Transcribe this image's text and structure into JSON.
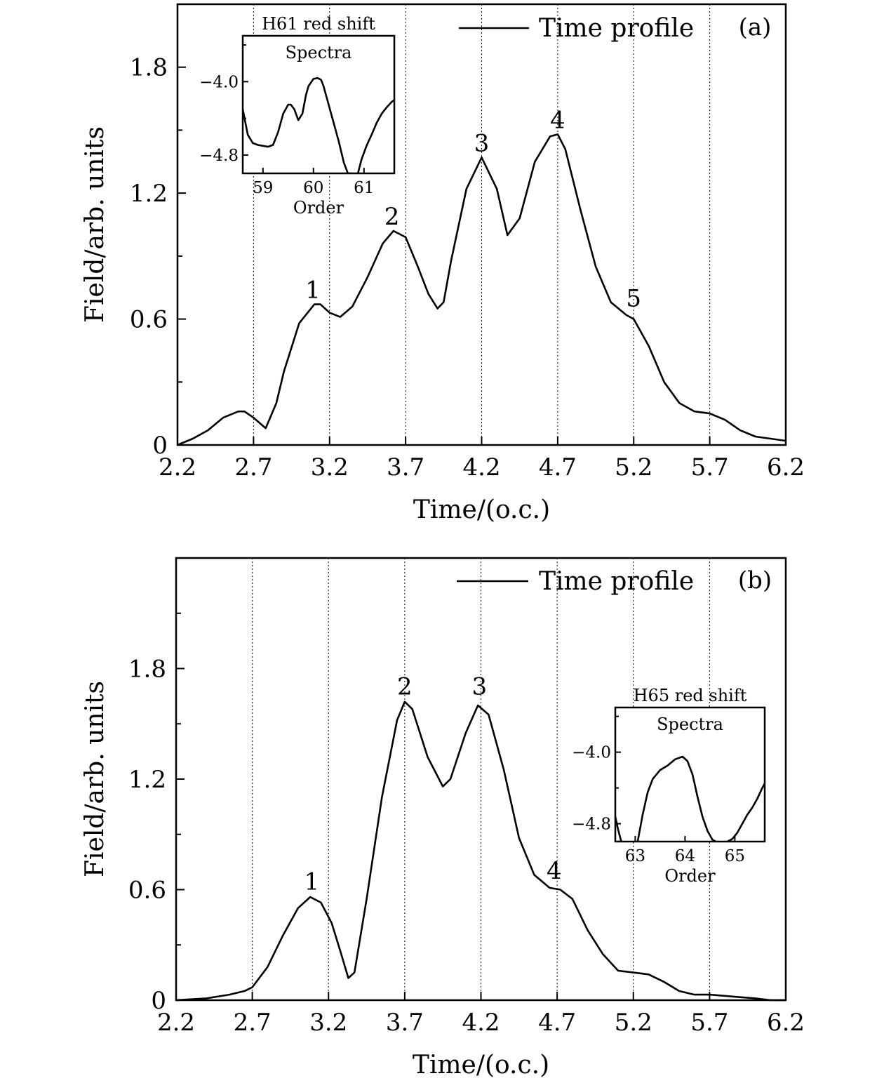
{
  "chart_data": [
    {
      "type": "line",
      "panel_tag": "(a)",
      "xlabel": "Time/(o.c.)",
      "ylabel": "Field/arb. units",
      "xlim": [
        2.2,
        6.2
      ],
      "ylim": [
        0,
        2.1
      ],
      "x_ticks": [
        "2.2",
        "2.7",
        "3.2",
        "3.7",
        "4.2",
        "4.7",
        "5.2",
        "5.7",
        "6.2"
      ],
      "y_ticks": [
        {
          "value": 0,
          "label": "0"
        },
        {
          "value": 0.6,
          "label": "0.6"
        },
        {
          "value": 1.2,
          "label": "1.2"
        },
        {
          "value": 1.8,
          "label": "1.8"
        }
      ],
      "y_minor_ticks": [
        0.3,
        0.9,
        1.5
      ],
      "vlines": [
        2.7,
        3.2,
        3.7,
        4.2,
        4.7,
        5.2,
        5.7
      ],
      "legend": {
        "position": "top-right",
        "entries": [
          "Time profile"
        ]
      },
      "series": [
        {
          "name": "Time profile",
          "x": [
            2.2,
            2.3,
            2.4,
            2.5,
            2.6,
            2.64,
            2.7,
            2.78,
            2.85,
            2.9,
            3.0,
            3.1,
            3.14,
            3.2,
            3.27,
            3.35,
            3.45,
            3.55,
            3.62,
            3.7,
            3.78,
            3.85,
            3.91,
            3.95,
            4.0,
            4.1,
            4.2,
            4.3,
            4.37,
            4.45,
            4.55,
            4.65,
            4.7,
            4.75,
            4.85,
            4.95,
            5.05,
            5.15,
            5.2,
            5.3,
            5.4,
            5.5,
            5.6,
            5.7,
            5.8,
            5.9,
            6.0,
            6.1,
            6.2
          ],
          "y": [
            0.0,
            0.03,
            0.07,
            0.13,
            0.16,
            0.16,
            0.13,
            0.08,
            0.2,
            0.35,
            0.58,
            0.67,
            0.67,
            0.63,
            0.61,
            0.66,
            0.8,
            0.96,
            1.02,
            0.99,
            0.85,
            0.72,
            0.65,
            0.68,
            0.88,
            1.22,
            1.37,
            1.22,
            1.0,
            1.08,
            1.35,
            1.47,
            1.48,
            1.41,
            1.12,
            0.85,
            0.68,
            0.62,
            0.6,
            0.47,
            0.3,
            0.2,
            0.16,
            0.15,
            0.12,
            0.07,
            0.04,
            0.03,
            0.02
          ]
        }
      ],
      "peak_labels": [
        {
          "label": "1",
          "x": 3.09,
          "y": 0.7
        },
        {
          "label": "2",
          "x": 3.61,
          "y": 1.05
        },
        {
          "label": "3",
          "x": 4.2,
          "y": 1.4
        },
        {
          "label": "4",
          "x": 4.7,
          "y": 1.51
        },
        {
          "label": "5",
          "x": 5.2,
          "y": 0.66
        }
      ],
      "inset": {
        "title": "H61 red shift",
        "label": "Spectra",
        "xlabel": "Order",
        "xlim": [
          58.6,
          61.6
        ],
        "ylim": [
          -5.0,
          -3.5
        ],
        "x_ticks": [
          "59",
          "60",
          "61"
        ],
        "y_ticks": [
          {
            "value": -4.0,
            "label": "−4.0"
          },
          {
            "value": -4.8,
            "label": "−4.8"
          }
        ],
        "y_minor_ticks": [
          -3.6,
          -4.4
        ],
        "segments": [
          {
            "x": [
              58.6,
              58.7,
              58.8,
              58.9,
              59.0,
              59.1,
              59.2,
              59.3,
              59.4,
              59.5,
              59.55,
              59.62,
              59.7,
              59.78,
              59.85,
              59.9,
              60.0,
              60.08,
              60.15,
              60.2,
              60.3,
              60.4,
              60.5,
              60.6,
              60.68,
              60.75
            ],
            "y": [
              -4.3,
              -4.58,
              -4.67,
              -4.69,
              -4.7,
              -4.71,
              -4.69,
              -4.55,
              -4.35,
              -4.25,
              -4.25,
              -4.3,
              -4.42,
              -4.35,
              -4.15,
              -4.05,
              -3.97,
              -3.96,
              -3.98,
              -4.05,
              -4.25,
              -4.45,
              -4.65,
              -4.88,
              -5.0,
              -5.0
            ]
          },
          {
            "x": [
              60.88,
              60.95,
              61.05,
              61.15,
              61.25,
              61.35,
              61.45,
              61.55,
              61.6
            ],
            "y": [
              -5.0,
              -4.85,
              -4.7,
              -4.58,
              -4.45,
              -4.35,
              -4.28,
              -4.22,
              -4.2
            ]
          }
        ]
      }
    },
    {
      "type": "line",
      "panel_tag": "(b)",
      "xlabel": "Time/(o.c.)",
      "ylabel": "Field/arb. units",
      "xlim": [
        2.2,
        6.2
      ],
      "ylim": [
        0,
        2.4
      ],
      "x_ticks": [
        "2.2",
        "2.7",
        "3.2",
        "3.7",
        "4.2",
        "4.7",
        "5.2",
        "5.7",
        "6.2"
      ],
      "y_ticks": [
        {
          "value": 0,
          "label": "0"
        },
        {
          "value": 0.6,
          "label": "0.6"
        },
        {
          "value": 1.2,
          "label": "1.2"
        },
        {
          "value": 1.8,
          "label": "1.8"
        }
      ],
      "y_minor_ticks": [
        0.3,
        0.9,
        1.5,
        2.1
      ],
      "vlines": [
        2.7,
        3.2,
        3.7,
        4.2,
        4.7,
        5.2,
        5.7
      ],
      "legend": {
        "position": "top-right",
        "entries": [
          "Time profile"
        ]
      },
      "series": [
        {
          "name": "Time profile",
          "x": [
            2.2,
            2.4,
            2.55,
            2.65,
            2.7,
            2.8,
            2.9,
            3.0,
            3.08,
            3.15,
            3.22,
            3.28,
            3.33,
            3.37,
            3.45,
            3.55,
            3.65,
            3.7,
            3.75,
            3.85,
            3.95,
            4.0,
            4.1,
            4.18,
            4.25,
            4.35,
            4.45,
            4.55,
            4.65,
            4.72,
            4.8,
            4.9,
            5.0,
            5.1,
            5.2,
            5.3,
            5.4,
            5.5,
            5.6,
            5.7,
            5.85,
            6.0,
            6.1,
            6.2
          ],
          "y": [
            0.0,
            0.01,
            0.03,
            0.05,
            0.07,
            0.18,
            0.35,
            0.5,
            0.56,
            0.53,
            0.42,
            0.26,
            0.12,
            0.15,
            0.55,
            1.1,
            1.52,
            1.62,
            1.58,
            1.32,
            1.16,
            1.2,
            1.45,
            1.6,
            1.55,
            1.25,
            0.88,
            0.68,
            0.61,
            0.6,
            0.55,
            0.38,
            0.25,
            0.16,
            0.15,
            0.14,
            0.1,
            0.05,
            0.03,
            0.03,
            0.02,
            0.01,
            0.0,
            0.0
          ]
        }
      ],
      "peak_labels": [
        {
          "label": "1",
          "x": 3.09,
          "y": 0.6
        },
        {
          "label": "2",
          "x": 3.7,
          "y": 1.66
        },
        {
          "label": "3",
          "x": 4.19,
          "y": 1.66
        },
        {
          "label": "4",
          "x": 4.68,
          "y": 0.66
        }
      ],
      "inset": {
        "title": "H65 red shift",
        "label": "Spectra",
        "xlabel": "Order",
        "xlim": [
          62.6,
          65.6
        ],
        "ylim": [
          -5.0,
          -3.5
        ],
        "x_ticks": [
          "63",
          "64",
          "65"
        ],
        "y_ticks": [
          {
            "value": -4.0,
            "label": "−4.0"
          },
          {
            "value": -4.8,
            "label": "−4.8"
          }
        ],
        "y_minor_ticks": [
          -3.6,
          -4.4
        ],
        "segments": [
          {
            "x": [
              62.6,
              62.65,
              62.72
            ],
            "y": [
              -4.72,
              -4.85,
              -5.0
            ]
          },
          {
            "x": [
              63.05,
              63.15,
              63.25,
              63.35,
              63.5,
              63.65,
              63.8,
              63.95,
              64.05,
              64.15,
              64.25,
              64.35,
              64.45,
              64.55,
              64.62
            ],
            "y": [
              -5.0,
              -4.7,
              -4.45,
              -4.3,
              -4.2,
              -4.15,
              -4.08,
              -4.05,
              -4.1,
              -4.25,
              -4.5,
              -4.72,
              -4.88,
              -4.98,
              -5.0
            ]
          },
          {
            "x": [
              64.85,
              64.95,
              65.05,
              65.15,
              65.25,
              65.35,
              65.45,
              65.55,
              65.6
            ],
            "y": [
              -5.0,
              -4.97,
              -4.9,
              -4.8,
              -4.7,
              -4.62,
              -4.52,
              -4.4,
              -4.35
            ]
          }
        ]
      }
    }
  ]
}
